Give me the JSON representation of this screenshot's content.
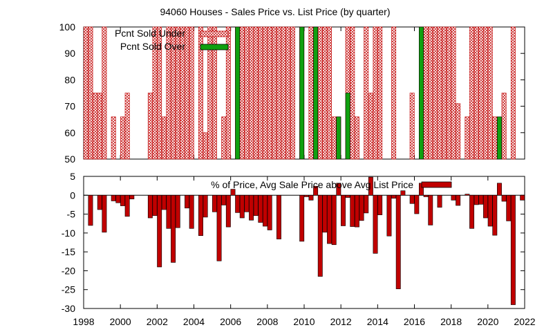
{
  "chart_data": [
    {
      "type": "bar",
      "title": "94060 Houses - Sales Price vs. List Price (by quarter)",
      "xlim": [
        1998,
        2022
      ],
      "ylim": [
        50,
        100
      ],
      "yticks": [
        50,
        60,
        70,
        80,
        90,
        100
      ],
      "grid": false,
      "legend_position": "top-left",
      "series": [
        {
          "name": "Pcnt Sold Under",
          "color": "#c00000",
          "fill": "crosshatch",
          "points": [
            [
              1998.0,
              100
            ],
            [
              1998.25,
              100
            ],
            [
              1998.5,
              75
            ],
            [
              1998.75,
              75
            ],
            [
              1999.0,
              100
            ],
            [
              1999.5,
              66
            ],
            [
              2000.0,
              66
            ],
            [
              2000.25,
              75
            ],
            [
              2001.5,
              75
            ],
            [
              2001.75,
              100
            ],
            [
              2002.0,
              100
            ],
            [
              2002.25,
              66
            ],
            [
              2002.5,
              100
            ],
            [
              2002.75,
              100
            ],
            [
              2003.0,
              100
            ],
            [
              2003.25,
              100
            ],
            [
              2003.5,
              100
            ],
            [
              2003.75,
              100
            ],
            [
              2004.25,
              100
            ],
            [
              2004.5,
              60
            ],
            [
              2004.75,
              100
            ],
            [
              2005.0,
              100
            ],
            [
              2005.5,
              66
            ],
            [
              2005.75,
              100
            ],
            [
              2006.25,
              100
            ],
            [
              2006.5,
              100
            ],
            [
              2006.75,
              100
            ],
            [
              2007.0,
              100
            ],
            [
              2007.25,
              100
            ],
            [
              2007.5,
              100
            ],
            [
              2007.75,
              100
            ],
            [
              2008.0,
              100
            ],
            [
              2008.25,
              100
            ],
            [
              2008.5,
              100
            ],
            [
              2008.75,
              100
            ],
            [
              2009.0,
              100
            ],
            [
              2009.25,
              100
            ],
            [
              2009.75,
              100
            ],
            [
              2010.25,
              100
            ],
            [
              2010.75,
              100
            ],
            [
              2011.0,
              100
            ],
            [
              2011.25,
              100
            ],
            [
              2011.5,
              66
            ],
            [
              2011.75,
              66
            ],
            [
              2012.25,
              100
            ],
            [
              2012.5,
              100
            ],
            [
              2012.75,
              66
            ],
            [
              2013.25,
              100
            ],
            [
              2013.5,
              75
            ],
            [
              2013.75,
              100
            ],
            [
              2014.0,
              100
            ],
            [
              2014.75,
              100
            ],
            [
              2015.75,
              75
            ],
            [
              2016.25,
              100
            ],
            [
              2016.5,
              100
            ],
            [
              2016.75,
              100
            ],
            [
              2017.0,
              100
            ],
            [
              2017.25,
              100
            ],
            [
              2017.5,
              100
            ],
            [
              2017.75,
              100
            ],
            [
              2018.0,
              100
            ],
            [
              2018.25,
              71
            ],
            [
              2018.75,
              66
            ],
            [
              2019.0,
              100
            ],
            [
              2019.25,
              100
            ],
            [
              2019.5,
              100
            ],
            [
              2019.75,
              100
            ],
            [
              2020.0,
              100
            ],
            [
              2020.25,
              66
            ],
            [
              2020.75,
              75
            ],
            [
              2021.25,
              100
            ]
          ]
        },
        {
          "name": "Pcnt Sold Over",
          "color": "#10a010",
          "fill": "solid",
          "points": [
            [
              2006.25,
              100
            ],
            [
              2009.75,
              100
            ],
            [
              2010.5,
              100
            ],
            [
              2011.75,
              66
            ],
            [
              2012.25,
              75
            ],
            [
              2016.25,
              100
            ],
            [
              2020.5,
              66
            ]
          ]
        }
      ]
    },
    {
      "type": "bar",
      "title": "",
      "xlim": [
        1998,
        2022
      ],
      "ylim": [
        -30,
        5
      ],
      "xticks": [
        1998,
        2000,
        2002,
        2004,
        2006,
        2008,
        2010,
        2012,
        2014,
        2016,
        2018,
        2020,
        2022
      ],
      "yticks": [
        -30,
        -25,
        -20,
        -15,
        -10,
        -5,
        0,
        5
      ],
      "grid": false,
      "legend_position": "top-right",
      "series": [
        {
          "name": "% of Price, Avg Sale Price above Avg List Price",
          "color": "#c00000",
          "fill": "solid",
          "points": [
            [
              1998.25,
              -8
            ],
            [
              1998.75,
              -3.8
            ],
            [
              1999.0,
              -9.8
            ],
            [
              1999.5,
              -1.5
            ],
            [
              1999.75,
              -2
            ],
            [
              2000.0,
              -2.8
            ],
            [
              2000.25,
              -5.6
            ],
            [
              2000.5,
              -1
            ],
            [
              2001.5,
              -6
            ],
            [
              2001.75,
              -5.4
            ],
            [
              2002.0,
              -19
            ],
            [
              2002.25,
              -3.8
            ],
            [
              2002.5,
              -8.8
            ],
            [
              2002.75,
              -17.8
            ],
            [
              2003.0,
              -8.6
            ],
            [
              2003.5,
              -3.4
            ],
            [
              2003.75,
              -8.8
            ],
            [
              2004.25,
              -10.7
            ],
            [
              2004.5,
              -5.8
            ],
            [
              2005.0,
              -4.4
            ],
            [
              2005.25,
              -17.4
            ],
            [
              2005.5,
              -2.6
            ],
            [
              2005.75,
              -8.4
            ],
            [
              2006.0,
              1.6
            ],
            [
              2006.25,
              -4.6
            ],
            [
              2006.5,
              -6
            ],
            [
              2006.75,
              -4.4
            ],
            [
              2007.0,
              -6.6
            ],
            [
              2007.25,
              -5.4
            ],
            [
              2007.5,
              -7.2
            ],
            [
              2007.75,
              -8.2
            ],
            [
              2008.0,
              -9.2
            ],
            [
              2008.5,
              -11.6
            ],
            [
              2009.75,
              -12.2
            ],
            [
              2010.0,
              -0.4
            ],
            [
              2010.25,
              -1.3
            ],
            [
              2010.5,
              2.4
            ],
            [
              2010.75,
              -21.5
            ],
            [
              2011.0,
              -9.8
            ],
            [
              2011.25,
              -12.8
            ],
            [
              2011.5,
              -13.1
            ],
            [
              2011.75,
              3.2
            ],
            [
              2012.0,
              -8.1
            ],
            [
              2012.25,
              -0.6
            ],
            [
              2012.5,
              -8.3
            ],
            [
              2012.75,
              -8.4
            ],
            [
              2013.0,
              -6.7
            ],
            [
              2013.25,
              -4.7
            ],
            [
              2013.5,
              4.8
            ],
            [
              2013.75,
              -15.4
            ],
            [
              2014.0,
              -5.2
            ],
            [
              2014.5,
              -10.8
            ],
            [
              2014.75,
              -0.8
            ],
            [
              2015.0,
              -24.8
            ],
            [
              2015.25,
              1.2
            ],
            [
              2015.75,
              -2.2
            ],
            [
              2016.0,
              -4.9
            ],
            [
              2016.25,
              3.2
            ],
            [
              2016.5,
              -0.4
            ],
            [
              2016.75,
              -7.9
            ],
            [
              2017.25,
              -3.2
            ],
            [
              2018.0,
              -1.3
            ],
            [
              2018.25,
              -2.7
            ],
            [
              2018.75,
              0.3
            ],
            [
              2019.0,
              -8.8
            ],
            [
              2019.25,
              -2.5
            ],
            [
              2019.5,
              -2.4
            ],
            [
              2019.75,
              -6
            ],
            [
              2020.0,
              -8.2
            ],
            [
              2020.25,
              -10.6
            ],
            [
              2020.5,
              3.2
            ],
            [
              2020.75,
              -1.6
            ],
            [
              2021.0,
              -6.8
            ],
            [
              2021.25,
              -29
            ],
            [
              2021.75,
              -1.3
            ]
          ]
        }
      ]
    }
  ]
}
